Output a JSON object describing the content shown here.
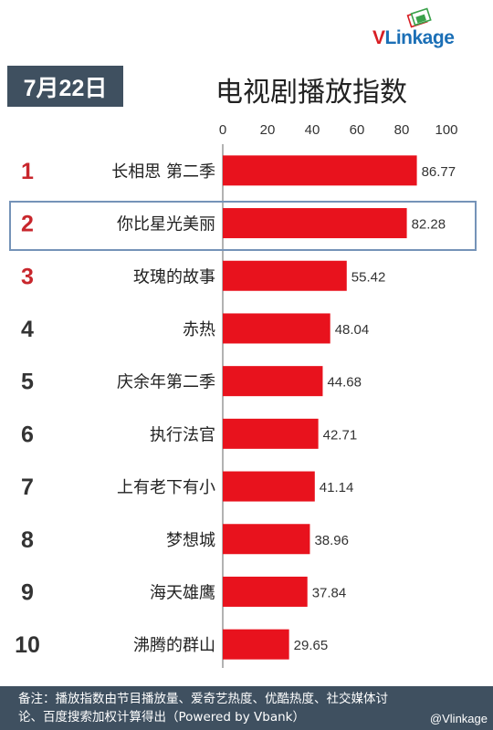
{
  "logo": {
    "v": "V",
    "rest": "Linkage"
  },
  "date_badge": "7月22日",
  "header": {
    "title": "电视剧播放指数"
  },
  "chart_data": {
    "type": "bar",
    "orientation": "horizontal",
    "title": "电视剧播放指数",
    "xlim": [
      0,
      100
    ],
    "x_ticks": [
      "0",
      "20",
      "40",
      "60",
      "80",
      "100"
    ],
    "grid": false,
    "highlighted_rank": 2,
    "bar_color": "#e8121d",
    "ranks": [
      "1",
      "2",
      "3",
      "4",
      "5",
      "6",
      "7",
      "8",
      "9",
      "10"
    ],
    "categories": [
      "长相思 第二季",
      "你比星光美丽",
      "玫瑰的故事",
      "赤热",
      "庆余年第二季",
      "执行法官",
      "上有老下有小",
      "梦想城",
      "海天雄鹰",
      "沸腾的群山"
    ],
    "values": [
      86.77,
      82.28,
      55.42,
      48.04,
      44.68,
      42.71,
      41.14,
      38.96,
      37.84,
      29.65
    ],
    "value_labels": [
      "86.77",
      "82.28",
      "55.42",
      "48.04",
      "44.68",
      "42.71",
      "41.14",
      "38.96",
      "37.84",
      "29.65"
    ]
  },
  "footer": {
    "line1": "备注：播放指数由节目播放量、爱奇艺热度、优酷热度、社交媒体讨",
    "line2": "论、百度搜索加权计算得出（Powered by Vbank）"
  },
  "watermark": "@Vlinkage",
  "colors": {
    "rank_top3": "#c8262c",
    "rank_other": "#333333",
    "banner": "#3f5060",
    "highlight_border": "#7593b8"
  }
}
